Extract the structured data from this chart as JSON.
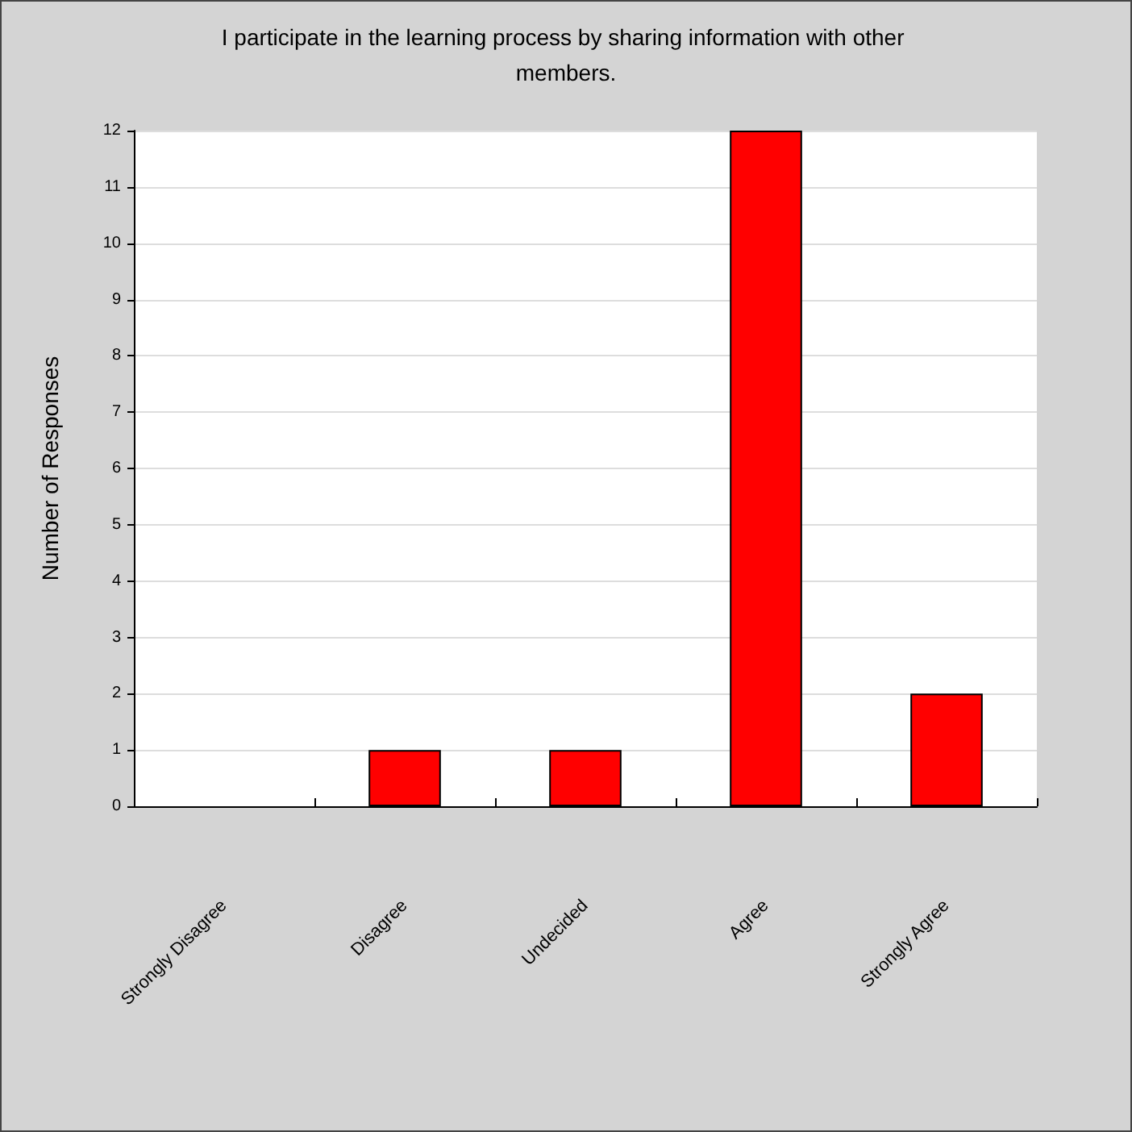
{
  "chart_data": {
    "type": "bar",
    "title": "I participate in the learning process by sharing information with other members.",
    "ylabel": "Number of Responses",
    "categories": [
      "Strongly Disagree",
      "Disagree",
      "Undecided",
      "Agree",
      "Strongly Agree"
    ],
    "values": [
      0,
      1,
      1,
      12,
      2
    ],
    "color": "#ff0000",
    "ylim": [
      0,
      12
    ],
    "yticks": [
      0,
      1,
      2,
      3,
      4,
      5,
      6,
      7,
      8,
      9,
      10,
      11,
      12
    ],
    "grid": "y"
  }
}
